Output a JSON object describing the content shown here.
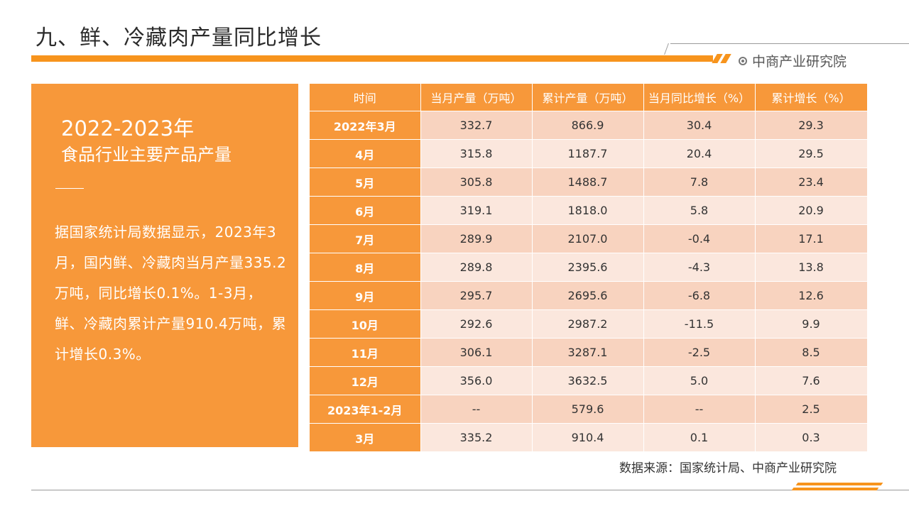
{
  "header": {
    "title": "九、鲜、冷藏肉产量同比增长",
    "brand": "中商产业研究院"
  },
  "left_panel": {
    "title_line1": "2022-2023年",
    "title_line2": "食品行业主要产品产量",
    "body": "据国家统计局数据显示，2023年3月，国内鲜、冷藏肉当月产量335.2万吨，同比增长0.1%。1-3月，鲜、冷藏肉累计产量910.4万吨，累计增长0.3%。"
  },
  "table": {
    "headers": [
      "时间",
      "当月产量（万吨）",
      "累计产量（万吨）",
      "当月同比增长（%）",
      "累计增长（%）"
    ],
    "rows": [
      [
        "2022年3月",
        "332.7",
        "866.9",
        "30.4",
        "29.3"
      ],
      [
        "4月",
        "315.8",
        "1187.7",
        "20.4",
        "29.5"
      ],
      [
        "5月",
        "305.8",
        "1488.7",
        "7.8",
        "23.4"
      ],
      [
        "6月",
        "319.1",
        "1818.0",
        "5.8",
        "20.9"
      ],
      [
        "7月",
        "289.9",
        "2107.0",
        "-0.4",
        "17.1"
      ],
      [
        "8月",
        "289.8",
        "2395.6",
        "-4.3",
        "13.8"
      ],
      [
        "9月",
        "295.7",
        "2695.6",
        "-6.8",
        "12.6"
      ],
      [
        "10月",
        "292.6",
        "2987.2",
        "-11.5",
        "9.9"
      ],
      [
        "11月",
        "306.1",
        "3287.1",
        "-2.5",
        "8.5"
      ],
      [
        "12月",
        "356.0",
        "3632.5",
        "5.0",
        "7.6"
      ],
      [
        "2023年1-2月",
        "--",
        "579.6",
        "--",
        "2.5"
      ],
      [
        "3月",
        "335.2",
        "910.4",
        "0.1",
        "0.3"
      ]
    ]
  },
  "footer": {
    "source": "数据来源：国家统计局、中商产业研究院"
  },
  "colors": {
    "accent": "#f7941d",
    "panel": "#f7983a",
    "row_light": "#fbe7dd",
    "row_dark": "#f8d3bf"
  }
}
